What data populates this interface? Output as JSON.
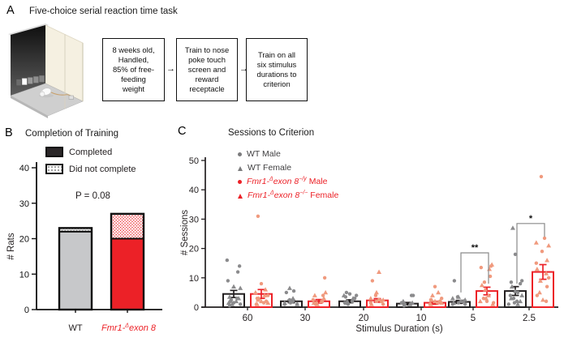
{
  "panelA": {
    "label": "A",
    "title": "Five-choice serial reaction time task",
    "flow_boxes": [
      "8 weeks old,\nHandled,\n85% of free-\nfeeding\nweight",
      "Train to nose\npoke touch\nscreen and\nreward\nreceptacle",
      "Train on all\nsix stimulus\ndurations to\ncriterion"
    ],
    "arrow_glyph": "→"
  },
  "panelB": {
    "label": "B",
    "title": "Completion of Training",
    "p_value": "P = 0.08",
    "ylabel": "# Rats",
    "legend": [
      {
        "label": "Completed",
        "swatch": "solid"
      },
      {
        "label": "Did not complete",
        "swatch": "dotted"
      }
    ],
    "x_labels": {
      "wt": "WT",
      "fmr1": {
        "italic1": "Fmr1-",
        "sup1": "Δ",
        "italic2": "exon 8"
      }
    }
  },
  "panelC": {
    "label": "C",
    "title": "Sessions to Criterion",
    "ylabel": "# Sessions",
    "xlabel": "Stimulus Duration (s)",
    "legend": [
      {
        "marker": "circle",
        "marker_color": "#7b7b7d",
        "text_color": "#414042",
        "label": {
          "plain": "WT Male"
        }
      },
      {
        "marker": "triangle",
        "marker_color": "#7b7b7d",
        "text_color": "#414042",
        "label": {
          "plain": "WT Female"
        }
      },
      {
        "marker": "circle",
        "marker_color": "#ec2127",
        "text_color": "#ec2127",
        "label": {
          "italic1": "Fmr1-",
          "sup1": "Δ",
          "italic2": "exon 8",
          "sup2": "−/y",
          "rest": " Male"
        }
      },
      {
        "marker": "triangle",
        "marker_color": "#ec2127",
        "text_color": "#ec2127",
        "label": {
          "italic1": "Fmr1-",
          "sup1": "Δ",
          "italic2": "exon 8",
          "sup2": "−/−",
          "rest": " Female"
        }
      }
    ]
  },
  "colors": {
    "red": "#ec2127",
    "salmon_point": "#f09a7e",
    "gray_point": "#8b8b8d",
    "gray_bar": "#c7c8ca",
    "dark": "#231f20",
    "bracket_gray": "#8a8a8a"
  },
  "chart_data": [
    {
      "panel": "B",
      "type": "bar",
      "stacked": true,
      "title": "Completion of Training",
      "ylabel": "# Rats",
      "ylim": [
        0,
        40
      ],
      "yticks": [
        0,
        10,
        20,
        30,
        40
      ],
      "categories": [
        "WT",
        "Fmr1-Δexon 8"
      ],
      "series": [
        {
          "name": "Completed",
          "values": [
            22,
            20
          ]
        },
        {
          "name": "Did not complete",
          "values": [
            1,
            7
          ]
        }
      ],
      "totals": [
        23,
        27
      ],
      "annotation": "P = 0.08",
      "completed_fill": [
        "#c7c8ca",
        "#ec2127"
      ],
      "dot_colors": [
        "#8f8f8f",
        "#ec2127"
      ]
    },
    {
      "panel": "C",
      "type": "bar+scatter",
      "title": "Sessions to Criterion",
      "xlabel": "Stimulus Duration (s)",
      "ylabel": "# Sessions",
      "ylim": [
        0,
        50
      ],
      "yticks": [
        0,
        10,
        20,
        30,
        40,
        50
      ],
      "categories": [
        "60",
        "30",
        "20",
        "10",
        "5",
        "2.5"
      ],
      "series": [
        {
          "name": "WT",
          "bar_values": [
            4.5,
            2,
            2,
            1.2,
            1.8,
            5.5
          ],
          "errors": [
            1.2,
            0.5,
            0.5,
            0.4,
            0.5,
            1.5
          ],
          "bar_stroke": "#231f20",
          "point_color": "#8b8b8d",
          "male_points": [
            [
              16,
              14,
              12,
              9,
              3,
              2.5,
              2,
              1.5,
              1,
              0.5
            ],
            [
              5.5,
              5,
              2.5,
              2,
              1.5,
              1,
              1
            ],
            [
              5,
              4.5,
              4,
              3.5,
              3,
              2,
              1.5,
              1
            ],
            [
              4,
              4,
              1.5,
              1,
              1,
              0.5
            ],
            [
              9,
              3.5,
              2,
              1.5,
              1,
              1
            ],
            [
              18,
              9,
              8.5,
              8,
              5,
              4,
              3,
              2,
              1.5,
              1
            ]
          ],
          "female_points": [
            [
              7,
              6.5,
              3.5,
              3,
              2,
              1.5,
              1
            ],
            [
              6.5,
              3,
              2,
              1.5,
              1
            ],
            [
              4,
              3,
              2,
              1.5
            ],
            [
              2,
              1.5,
              1
            ],
            [
              3.5,
              3,
              2.5,
              2,
              1.5
            ],
            [
              27,
              7,
              5.5,
              4,
              3,
              2,
              1
            ]
          ]
        },
        {
          "name": "Fmr1-Δexon 8",
          "bar_values": [
            4.5,
            2,
            2.3,
            1.5,
            5.5,
            12
          ],
          "errors": [
            1.5,
            0.6,
            0.6,
            0.5,
            1.3,
            2.5
          ],
          "bar_stroke": "#ec2127",
          "point_color": "#f09a7e",
          "male_points": [
            [
              31,
              8,
              4,
              3,
              2,
              1.5,
              1
            ],
            [
              10,
              4,
              2.5,
              2,
              1.5,
              1
            ],
            [
              9,
              4,
              2.5,
              2,
              1.5,
              1
            ],
            [
              7,
              3,
              2.5,
              2,
              1.5,
              1
            ],
            [
              14,
              13.5,
              10.5,
              8.5,
              3,
              2,
              1.5
            ],
            [
              44.5,
              23.5,
              19,
              15,
              10,
              7,
              4,
              2
            ]
          ],
          "female_points": [
            [
              6,
              5,
              4,
              3,
              2.5,
              2,
              1.5,
              1
            ],
            [
              5,
              4,
              3,
              2,
              1.5,
              1
            ],
            [
              12,
              5,
              3,
              2.5,
              2,
              1
            ],
            [
              5,
              4,
              2.5,
              2,
              1.5,
              1
            ],
            [
              14.5,
              13,
              7.5,
              6,
              4,
              3,
              2,
              1
            ],
            [
              22,
              21,
              16,
              13,
              11.5,
              9,
              5,
              2.5
            ]
          ]
        }
      ],
      "significance": [
        {
          "category": "5",
          "label": "**",
          "bar_y": 18.5,
          "left_drop_y": 5,
          "right_drop_y": 8
        },
        {
          "category": "2.5",
          "label": "*",
          "bar_y": 28.5,
          "left_drop_y": 8,
          "right_drop_y": 24
        }
      ],
      "legend_position": "upper-left",
      "grid": false
    }
  ]
}
